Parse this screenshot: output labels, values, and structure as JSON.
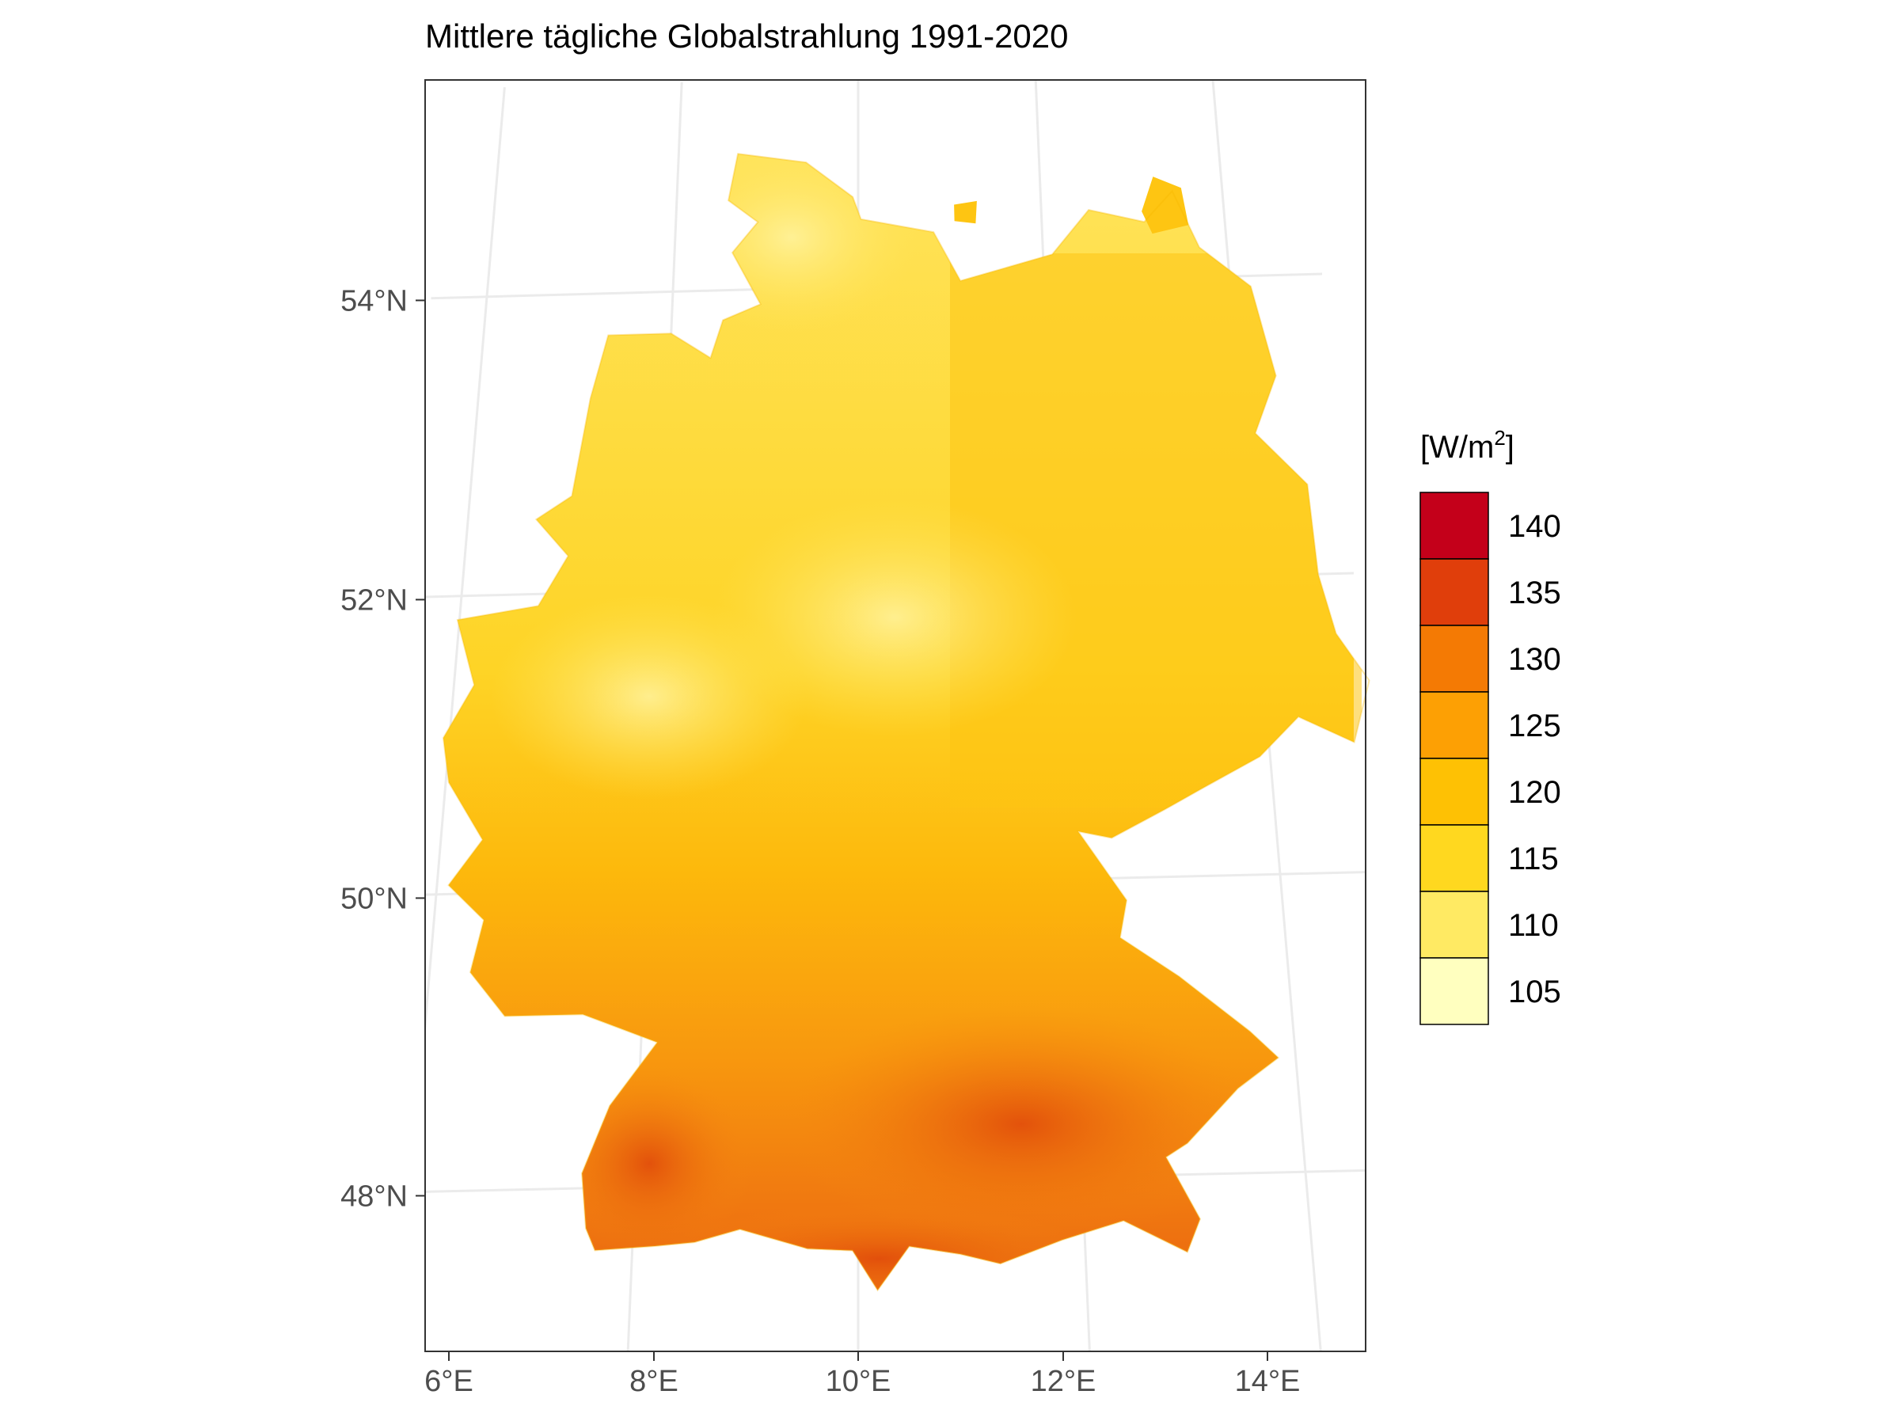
{
  "title": "Mittlere tägliche Globalstrahlung 1991-2020",
  "map": {
    "region": "Germany",
    "lon_ticks": [
      {
        "value": 6,
        "label": "6°E"
      },
      {
        "value": 8,
        "label": "8°E"
      },
      {
        "value": 10,
        "label": "10°E"
      },
      {
        "value": 12,
        "label": "12°E"
      },
      {
        "value": 14,
        "label": "14°E"
      }
    ],
    "lat_ticks": [
      {
        "value": 48,
        "label": "48°N"
      },
      {
        "value": 50,
        "label": "50°N"
      },
      {
        "value": 52,
        "label": "52°N"
      },
      {
        "value": 54,
        "label": "54°N"
      }
    ],
    "lon_range": [
      5.8,
      15.0
    ],
    "lat_range": [
      46.8,
      55.2
    ],
    "gridline_color": "#ebebeb",
    "panel_border_color": "#333333"
  },
  "legend": {
    "title_main": "[W/m",
    "title_sup": "2",
    "title_end": "]",
    "placement": "right",
    "bins": [
      {
        "label": "140",
        "color": "#c4001a"
      },
      {
        "label": "135",
        "color": "#e03e0b"
      },
      {
        "label": "130",
        "color": "#f47a04"
      },
      {
        "label": "125",
        "color": "#fda004"
      },
      {
        "label": "120",
        "color": "#fec104"
      },
      {
        "label": "115",
        "color": "#ffd81f"
      },
      {
        "label": "110",
        "color": "#ffea63"
      },
      {
        "label": "105",
        "color": "#ffffbf"
      }
    ]
  },
  "colors": {
    "north": "#ffe45c",
    "center": "#fed22a",
    "east": "#fec512",
    "south": "#f89a12",
    "alps": "#ea6a0c",
    "hot": "#d9320c"
  }
}
